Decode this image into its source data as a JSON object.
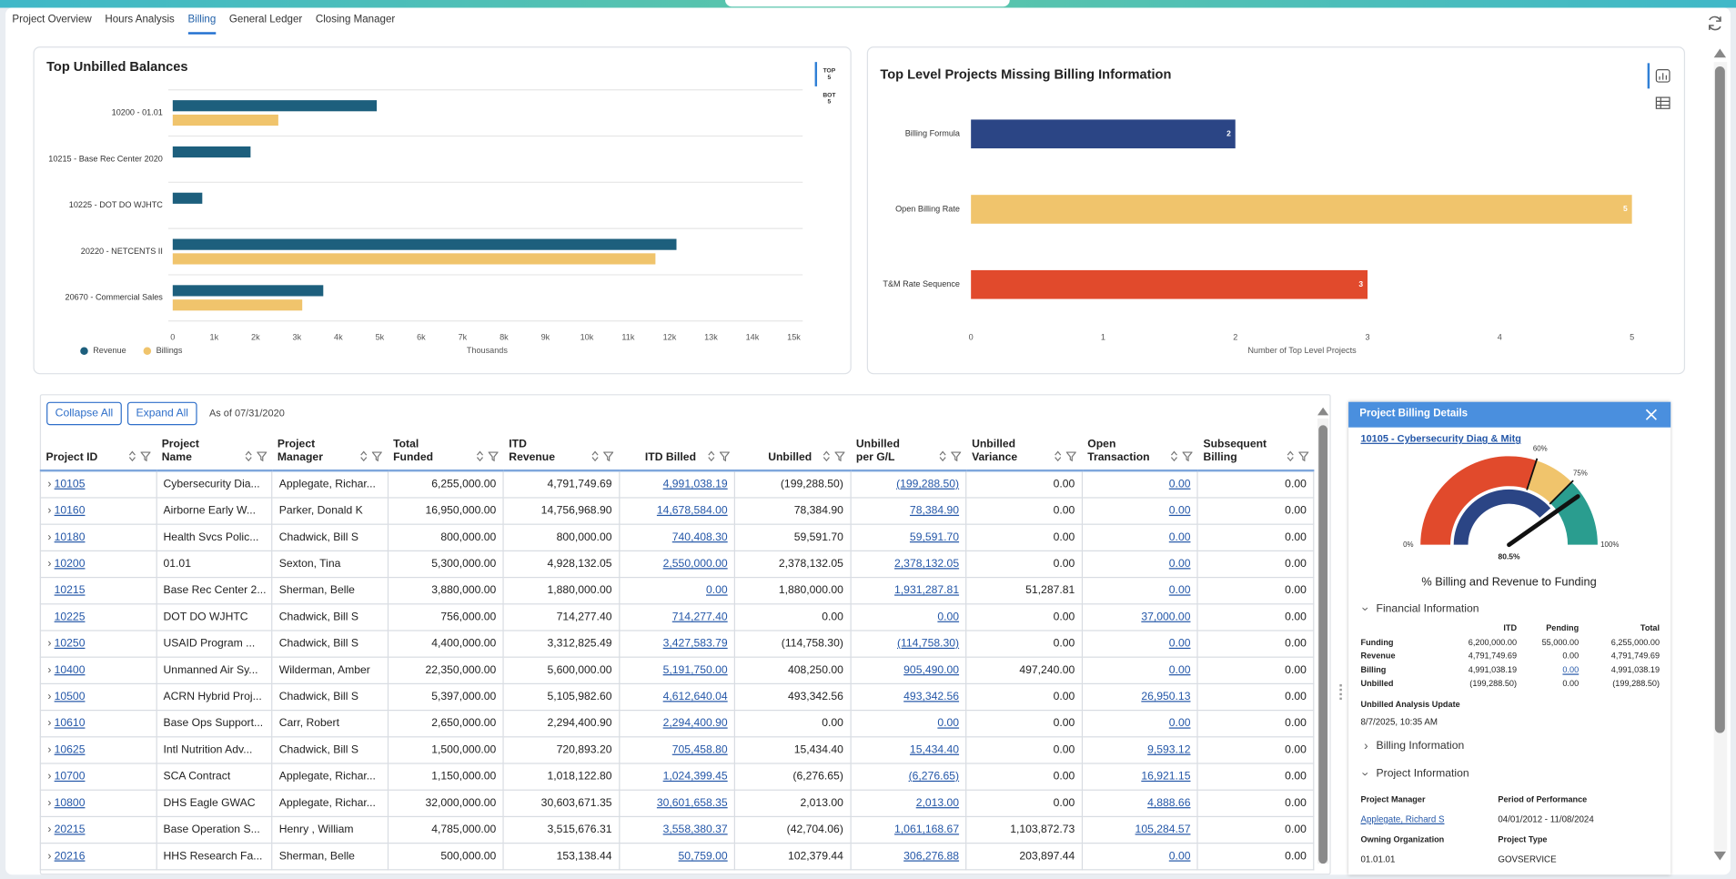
{
  "tabs": [
    "Project Overview",
    "Hours Analysis",
    "Billing",
    "General Ledger",
    "Closing Manager"
  ],
  "chart_data": [
    {
      "type": "bar",
      "orientation": "horizontal",
      "title": "Top Unbilled Balances",
      "categories": [
        "10200 - 01.01",
        "10215 - Base Rec Center 2020",
        "10225 - DOT DO WJHTC",
        "20220 - NETCENTS II",
        "20670 - Commercial Sales"
      ],
      "series": [
        {
          "name": "Revenue",
          "color": "#1d5f7d",
          "values": [
            4928,
            1880,
            714,
            12166,
            3636
          ]
        },
        {
          "name": "Billings",
          "color": "#f0c46c",
          "values": [
            2550,
            0,
            null,
            11658,
            3128
          ]
        }
      ],
      "xlim": [
        0,
        15000
      ],
      "xticks": [
        0,
        {
          "value": 1000,
          "label": "1k"
        },
        {
          "value": 2000,
          "label": "2k"
        },
        {
          "value": 3000,
          "label": "3k"
        },
        {
          "value": 4000,
          "label": "4k"
        },
        {
          "value": 5000,
          "label": "5k"
        },
        {
          "value": 6000,
          "label": "6k"
        },
        {
          "value": 7000,
          "label": "7k"
        },
        {
          "value": 8000,
          "label": "8k"
        },
        {
          "value": 9000,
          "label": "9k"
        },
        {
          "value": 10000,
          "label": "10k"
        },
        {
          "value": 11000,
          "label": "11k"
        },
        {
          "value": 12000,
          "label": "12k"
        },
        {
          "value": 13000,
          "label": "13k"
        },
        {
          "value": 14000,
          "label": "14k"
        },
        {
          "value": 15000,
          "label": "15k"
        }
      ],
      "xlabel": "Thousands",
      "toggle": [
        [
          "TOP",
          "5"
        ],
        [
          "BOT",
          "5"
        ]
      ]
    },
    {
      "type": "bar",
      "orientation": "horizontal",
      "title": "Top Level Projects Missing Billing Information",
      "categories": [
        "Billing Formula",
        "Open Billing Rate",
        "T&M Rate Sequence"
      ],
      "values": [
        2,
        5,
        3
      ],
      "colors": [
        "#2b4585",
        "#f0c46c",
        "#e14a2c"
      ],
      "xlim": [
        0,
        5
      ],
      "xticks": [
        0,
        1,
        2,
        3,
        4,
        5
      ],
      "xlabel": "Number of Top Level Projects"
    }
  ],
  "table": {
    "buttons": [
      "Collapse All",
      "Expand All"
    ],
    "as_of": "As of 07/31/2020",
    "columns": [
      {
        "header": [
          "Project ID"
        ],
        "align": "left",
        "link": true
      },
      {
        "header": [
          "Project",
          "Name"
        ],
        "align": "left",
        "link": false
      },
      {
        "header": [
          "Project",
          "Manager"
        ],
        "align": "left",
        "link": false
      },
      {
        "header": [
          "Total",
          "Funded"
        ],
        "align": "right",
        "link": false
      },
      {
        "header": [
          "ITD",
          "Revenue"
        ],
        "align": "right",
        "link": false
      },
      {
        "header": [
          "ITD Billed"
        ],
        "align": "right",
        "link": true
      },
      {
        "header": [
          "Unbilled"
        ],
        "align": "right",
        "link": false
      },
      {
        "header": [
          "Unbilled",
          "per G/L"
        ],
        "align": "right",
        "link": true
      },
      {
        "header": [
          "Unbilled",
          "Variance"
        ],
        "align": "right",
        "link": false
      },
      {
        "header": [
          "Open",
          "Transaction"
        ],
        "align": "right",
        "link": true
      },
      {
        "header": [
          "Subsequent",
          "Billing"
        ],
        "align": "right",
        "link": false
      }
    ],
    "rows": [
      [
        "10105",
        "Cybersecurity Dia...",
        "Applegate, Richar...",
        "6,255,000.00",
        "4,791,749.69",
        "4,991,038.19",
        "(199,288.50)",
        "(199,288.50)",
        "0.00",
        "0.00",
        "0.00"
      ],
      [
        "10160",
        "Airborne Early W...",
        "Parker, Donald K",
        "16,950,000.00",
        "14,756,968.90",
        "14,678,584.00",
        "78,384.90",
        "78,384.90",
        "0.00",
        "0.00",
        "0.00"
      ],
      [
        "10180",
        "Health Svcs Polic...",
        "Chadwick, Bill S",
        "800,000.00",
        "800,000.00",
        "740,408.30",
        "59,591.70",
        "59,591.70",
        "0.00",
        "0.00",
        "0.00"
      ],
      [
        "10200",
        "01.01",
        "Sexton, Tina",
        "5,300,000.00",
        "4,928,132.05",
        "2,550,000.00",
        "2,378,132.05",
        "2,378,132.05",
        "0.00",
        "0.00",
        "0.00"
      ],
      [
        "10215",
        "Base Rec Center 2...",
        "Sherman, Belle",
        "3,880,000.00",
        "1,880,000.00",
        "0.00",
        "1,880,000.00",
        "1,931,287.81",
        "51,287.81",
        "0.00",
        "0.00"
      ],
      [
        "10225",
        "DOT DO WJHTC",
        "Chadwick, Bill S",
        "756,000.00",
        "714,277.40",
        "714,277.40",
        "0.00",
        "0.00",
        "0.00",
        "37,000.00",
        "0.00"
      ],
      [
        "10250",
        "USAID Program ...",
        "Chadwick, Bill S",
        "4,400,000.00",
        "3,312,825.49",
        "3,427,583.79",
        "(114,758.30)",
        "(114,758.30)",
        "0.00",
        "0.00",
        "0.00"
      ],
      [
        "10400",
        "Unmanned Air Sy...",
        "Wilderman, Amber",
        "22,350,000.00",
        "5,600,000.00",
        "5,191,750.00",
        "408,250.00",
        "905,490.00",
        "497,240.00",
        "0.00",
        "0.00"
      ],
      [
        "10500",
        "ACRN Hybrid Proj...",
        "Chadwick, Bill S",
        "5,397,000.00",
        "5,105,982.60",
        "4,612,640.04",
        "493,342.56",
        "493,342.56",
        "0.00",
        "26,950.13",
        "0.00"
      ],
      [
        "10610",
        "Base Ops Support...",
        "Carr, Robert",
        "2,650,000.00",
        "2,294,400.90",
        "2,294,400.90",
        "0.00",
        "0.00",
        "0.00",
        "0.00",
        "0.00"
      ],
      [
        "10625",
        "Intl Nutrition Adv...",
        "Chadwick, Bill S",
        "1,500,000.00",
        "720,893.20",
        "705,458.80",
        "15,434.40",
        "15,434.40",
        "0.00",
        "9,593.12",
        "0.00"
      ],
      [
        "10700",
        "SCA Contract",
        "Applegate, Richar...",
        "1,150,000.00",
        "1,018,122.80",
        "1,024,399.45",
        "(6,276.65)",
        "(6,276.65)",
        "0.00",
        "16,921.15",
        "0.00"
      ],
      [
        "10800",
        "DHS Eagle GWAC",
        "Applegate, Richar...",
        "32,000,000.00",
        "30,603,671.35",
        "30,601,658.35",
        "2,013.00",
        "2,013.00",
        "0.00",
        "4,888.66",
        "0.00"
      ],
      [
        "20215",
        "Base Operation S...",
        "Henry , William",
        "4,785,000.00",
        "3,515,676.31",
        "3,558,380.37",
        "(42,704.06)",
        "1,061,168.67",
        "1,103,872.73",
        "105,284.57",
        "0.00"
      ],
      [
        "20216",
        "HHS Research Fa...",
        "Sherman, Belle",
        "500,000.00",
        "153,138.44",
        "50,759.00",
        "102,379.44",
        "306,276.88",
        "203,897.44",
        "0.00",
        "0.00"
      ]
    ],
    "expandable": [
      true,
      true,
      true,
      true,
      false,
      false,
      true,
      true,
      true,
      true,
      true,
      true,
      true,
      true,
      true
    ]
  },
  "details": {
    "title": "Project Billing Details",
    "project": "10105 - Cybersecurity Diag & Mitg",
    "gauge": {
      "ticks": [
        {
          "value": 0,
          "label": "0%"
        },
        {
          "value": 60,
          "label": "60%"
        },
        {
          "value": 75,
          "label": "75%"
        },
        {
          "value": 100,
          "label": "100%"
        }
      ],
      "colors": [
        "#e14a2c",
        "#f0c46c",
        "#2a9d8f"
      ],
      "inner_value": 77,
      "inner_color": "#2b4585",
      "value": 80.5,
      "value_label": "80.5%",
      "caption": "% Billing and Revenue to Funding"
    },
    "financial": {
      "title": "Financial Information",
      "columns": [
        "ITD",
        "Pending",
        "Total"
      ],
      "rows": [
        {
          "label": "Funding",
          "values": [
            "6,200,000.00",
            "55,000.00",
            "6,255,000.00"
          ]
        },
        {
          "label": "Revenue",
          "values": [
            "4,791,749.69",
            "0.00",
            "4,791,749.69"
          ]
        },
        {
          "label": "Billing",
          "values": [
            "4,991,038.19",
            "0.00",
            "4,991,038.19"
          ],
          "linked": [
            false,
            true,
            false
          ]
        },
        {
          "label": "Unbilled",
          "values": [
            "(199,288.50)",
            "0.00",
            "(199,288.50)"
          ]
        }
      ]
    },
    "update_label": "Unbilled Analysis Update",
    "update_value": "8/7/2025, 10:35 AM",
    "billing_section": "Billing Information",
    "project_section": "Project Information",
    "fields": [
      {
        "label": "Project Manager",
        "value": "Applegate, Richard S",
        "link": true
      },
      {
        "label": "Period of Performance",
        "value": "04/01/2012 - 11/08/2024"
      },
      {
        "label": "Owning Organization",
        "value": "01.01.01"
      },
      {
        "label": "Project Type",
        "value": "GOVSERVICE"
      }
    ]
  }
}
